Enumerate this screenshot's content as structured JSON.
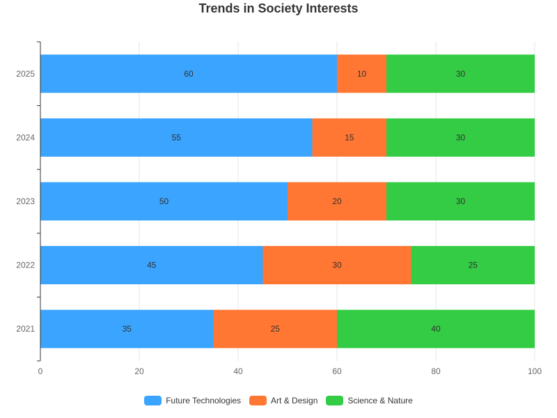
{
  "chart_data": {
    "type": "bar",
    "orientation": "horizontal",
    "stacked": true,
    "title": "Trends in Society Interests",
    "categories": [
      "2025",
      "2024",
      "2023",
      "2022",
      "2021"
    ],
    "series": [
      {
        "name": "Future Technologies",
        "color": "#3aa4ff",
        "values": [
          60,
          55,
          50,
          45,
          35
        ]
      },
      {
        "name": "Art & Design",
        "color": "#ff7733",
        "values": [
          10,
          15,
          20,
          30,
          25
        ]
      },
      {
        "name": "Science & Nature",
        "color": "#33cc44",
        "values": [
          30,
          30,
          30,
          25,
          40
        ]
      }
    ],
    "xlim": [
      0,
      100
    ],
    "xticks": [
      "0",
      "20",
      "40",
      "60",
      "80",
      "100"
    ],
    "grid": true,
    "legend_position": "bottom"
  }
}
